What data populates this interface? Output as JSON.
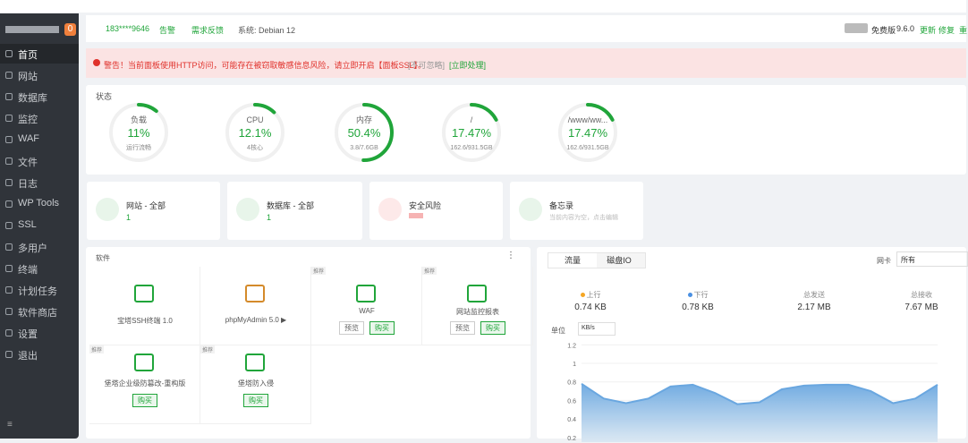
{
  "sidebar": {
    "badge": "0",
    "items": [
      "首页",
      "网站",
      "数据库",
      "监控",
      "WAF",
      "文件",
      "日志",
      "WP Tools",
      "SSL",
      "多用户",
      "终端",
      "计划任务",
      "软件商店",
      "设置",
      "退出"
    ]
  },
  "topbar": {
    "user": "183****9646",
    "alarm": "告警",
    "feedback": "需求反馈",
    "system": "系统: Debian 12",
    "edition": "免费版",
    "version": "9.6.0",
    "update": "更新",
    "repair": "修复",
    "restart": "重"
  },
  "alert": {
    "text": "警告！当前面板使用HTTP访问，可能存在被窃取敏感信息风险，请立即开启【面板SSL】。",
    "ignore": "[不可忽略]",
    "action": "[立即处理]"
  },
  "status": {
    "title": "状态",
    "gauges": [
      {
        "name": "负载",
        "value": 11,
        "label": "11%",
        "detail": "运行流畅"
      },
      {
        "name": "CPU",
        "value": 12.1,
        "label": "12.1%",
        "detail": "4核心"
      },
      {
        "name": "内存",
        "value": 50.4,
        "label": "50.4%",
        "detail": "3.8/7.6GB"
      },
      {
        "name": "/",
        "value": 17.47,
        "label": "17.47%",
        "detail": "162.6/931.5GB"
      },
      {
        "name": "/www/ww...",
        "value": 17.47,
        "label": "17.47%",
        "detail": "162.6/931.5GB"
      }
    ]
  },
  "cards": [
    {
      "title": "网站 - 全部",
      "value": "1"
    },
    {
      "title": "数据库 - 全部",
      "value": "1"
    },
    {
      "title": "安全风险"
    },
    {
      "title": "备忘录",
      "note": "当前内容为空，点击编辑"
    }
  ],
  "software": {
    "title": "软件",
    "items": [
      {
        "name": "宝塔SSH终端 1.0"
      },
      {
        "name": "phpMyAdmin 5.0 ▶"
      },
      {
        "name": "WAF",
        "tag": "推荐",
        "buttons": [
          "预览",
          "购买"
        ]
      },
      {
        "name": "网站监控报表",
        "tag": "推荐",
        "buttons": [
          "预览",
          "购买"
        ]
      },
      {
        "name": "堡塔企业级防篡改-重构版",
        "tag": "推荐",
        "buttons": [
          "购买"
        ]
      },
      {
        "name": "堡塔防入侵",
        "tag": "推荐",
        "buttons": [
          "购买"
        ]
      }
    ]
  },
  "traffic": {
    "tabs": [
      "流量",
      "磁盘IO"
    ],
    "nic_label": "网卡",
    "nic_value": "所有",
    "stats": [
      {
        "name": "上行",
        "value": "0.74 KB"
      },
      {
        "name": "下行",
        "value": "0.78 KB"
      },
      {
        "name": "总发送",
        "value": "2.17 MB"
      },
      {
        "name": "总接收",
        "value": "7.67 MB"
      }
    ],
    "unit_label": "单位",
    "unit_value": "KB/s",
    "chart": {
      "type": "area",
      "values": [
        0.78,
        0.62,
        0.57,
        0.62,
        0.75,
        0.77,
        0.68,
        0.56,
        0.58,
        0.72,
        0.76,
        0.77,
        0.77,
        0.7,
        0.57,
        0.62,
        0.77
      ],
      "ylim": [
        0.15,
        1.3
      ],
      "yticks": [
        0.2,
        0.4,
        0.6,
        0.8,
        1,
        1.2
      ],
      "color": "#6aa7e0"
    }
  }
}
